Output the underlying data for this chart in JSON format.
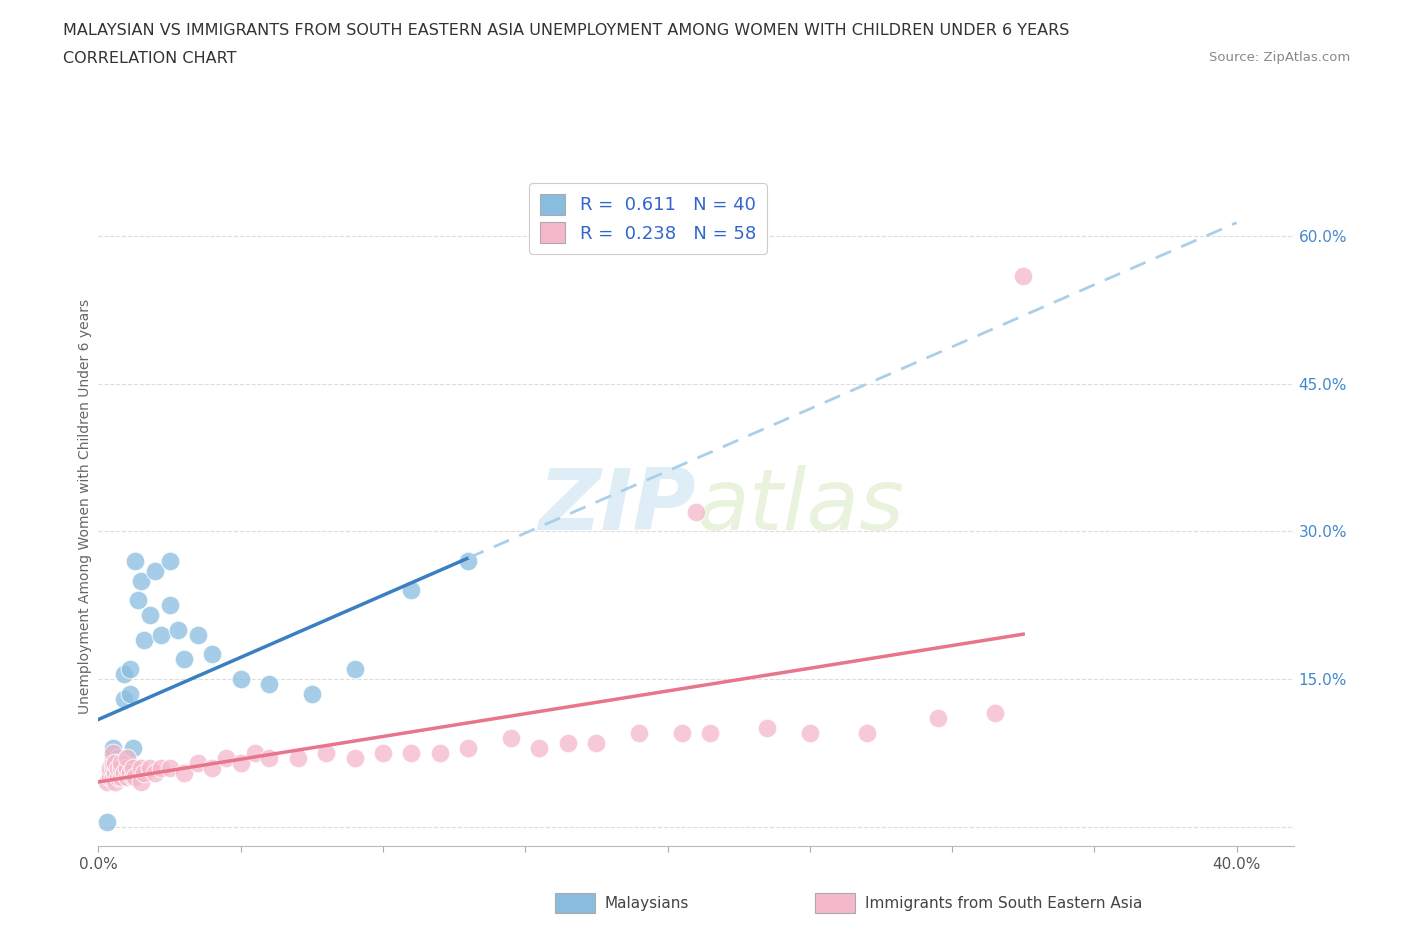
{
  "title_line1": "MALAYSIAN VS IMMIGRANTS FROM SOUTH EASTERN ASIA UNEMPLOYMENT AMONG WOMEN WITH CHILDREN UNDER 6 YEARS",
  "title_line2": "CORRELATION CHART",
  "source_text": "Source: ZipAtlas.com",
  "ylabel": "Unemployment Among Women with Children Under 6 years",
  "xlim": [
    0.0,
    0.42
  ],
  "ylim": [
    -0.02,
    0.67
  ],
  "xtick_positions": [
    0.0,
    0.05,
    0.1,
    0.15,
    0.2,
    0.25,
    0.3,
    0.35,
    0.4
  ],
  "xticklabels": [
    "0.0%",
    "",
    "",
    "",
    "",
    "",
    "",
    "",
    "40.0%"
  ],
  "ytick_positions": [
    0.0,
    0.15,
    0.3,
    0.45,
    0.6
  ],
  "ytick_labels": [
    "",
    "15.0%",
    "30.0%",
    "45.0%",
    "60.0%"
  ],
  "grid_color": "#dddddd",
  "background_color": "#ffffff",
  "watermark_zip": "ZIP",
  "watermark_atlas": "atlas",
  "blue_R": 0.611,
  "blue_N": 40,
  "pink_R": 0.238,
  "pink_N": 58,
  "blue_color": "#89bde0",
  "pink_color": "#f5b8cb",
  "blue_line_color": "#3a7fc1",
  "pink_line_color": "#e8758a",
  "blue_dashed_color": "#aacfe8",
  "legend_blue_label": "Malaysians",
  "legend_pink_label": "Immigrants from South Eastern Asia",
  "blue_scatter_x": [
    0.003,
    0.004,
    0.005,
    0.005,
    0.005,
    0.005,
    0.005,
    0.006,
    0.006,
    0.007,
    0.008,
    0.008,
    0.009,
    0.009,
    0.01,
    0.01,
    0.01,
    0.011,
    0.011,
    0.012,
    0.012,
    0.013,
    0.014,
    0.015,
    0.016,
    0.018,
    0.02,
    0.022,
    0.025,
    0.028,
    0.03,
    0.035,
    0.04,
    0.05,
    0.06,
    0.075,
    0.09,
    0.11,
    0.13,
    0.025
  ],
  "blue_scatter_y": [
    0.005,
    0.055,
    0.06,
    0.065,
    0.07,
    0.075,
    0.08,
    0.06,
    0.065,
    0.07,
    0.06,
    0.065,
    0.13,
    0.155,
    0.06,
    0.065,
    0.07,
    0.135,
    0.16,
    0.06,
    0.08,
    0.27,
    0.23,
    0.25,
    0.19,
    0.215,
    0.26,
    0.195,
    0.225,
    0.2,
    0.17,
    0.195,
    0.175,
    0.15,
    0.145,
    0.135,
    0.16,
    0.24,
    0.27,
    0.27
  ],
  "pink_scatter_x": [
    0.003,
    0.004,
    0.004,
    0.005,
    0.005,
    0.005,
    0.005,
    0.006,
    0.006,
    0.006,
    0.007,
    0.007,
    0.008,
    0.008,
    0.008,
    0.009,
    0.01,
    0.01,
    0.01,
    0.011,
    0.012,
    0.012,
    0.013,
    0.015,
    0.015,
    0.016,
    0.018,
    0.02,
    0.022,
    0.025,
    0.03,
    0.035,
    0.04,
    0.045,
    0.05,
    0.055,
    0.06,
    0.07,
    0.08,
    0.09,
    0.1,
    0.11,
    0.12,
    0.13,
    0.145,
    0.155,
    0.165,
    0.175,
    0.19,
    0.205,
    0.215,
    0.235,
    0.25,
    0.27,
    0.295,
    0.315,
    0.21,
    0.325
  ],
  "pink_scatter_y": [
    0.045,
    0.05,
    0.06,
    0.05,
    0.06,
    0.065,
    0.075,
    0.045,
    0.055,
    0.065,
    0.05,
    0.06,
    0.05,
    0.06,
    0.065,
    0.055,
    0.05,
    0.06,
    0.07,
    0.055,
    0.05,
    0.06,
    0.05,
    0.045,
    0.06,
    0.055,
    0.06,
    0.055,
    0.06,
    0.06,
    0.055,
    0.065,
    0.06,
    0.07,
    0.065,
    0.075,
    0.07,
    0.07,
    0.075,
    0.07,
    0.075,
    0.075,
    0.075,
    0.08,
    0.09,
    0.08,
    0.085,
    0.085,
    0.095,
    0.095,
    0.095,
    0.1,
    0.095,
    0.095,
    0.11,
    0.115,
    0.32,
    0.56
  ]
}
